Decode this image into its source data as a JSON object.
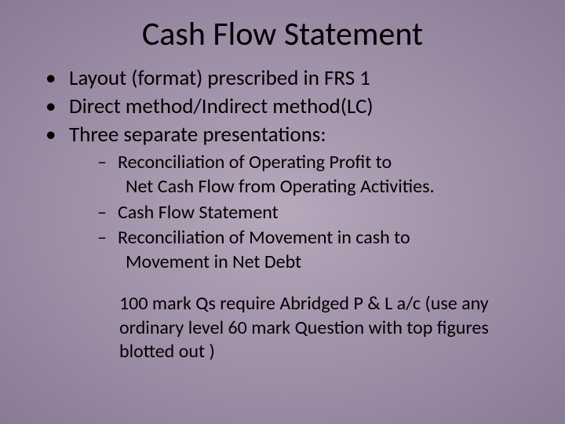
{
  "slide": {
    "background_gradient": [
      "#b8a8bc",
      "#a090a8",
      "#8a7a94"
    ],
    "title": "Cash Flow Statement",
    "title_fontsize": 42,
    "bullets_level1": [
      "Layout (format) prescribed in FRS 1",
      "Direct method/Indirect method(LC)",
      "Three separate presentations:"
    ],
    "bullet_level1_fontsize": 27,
    "bullets_level2": [
      {
        "line1": "Reconciliation of Operating Profit to",
        "line2": "Net Cash Flow from Operating Activities."
      },
      {
        "line1": "Cash Flow Statement",
        "line2": ""
      },
      {
        "line1": "Reconciliation of Movement in cash to",
        "line2": "Movement in Net Debt"
      }
    ],
    "bullet_level2_fontsize": 24,
    "note": "100 mark Qs require Abridged P & L a/c (use any ordinary level 60 mark Question with top figures blotted out )",
    "note_fontsize": 24,
    "text_color": "#000000"
  }
}
